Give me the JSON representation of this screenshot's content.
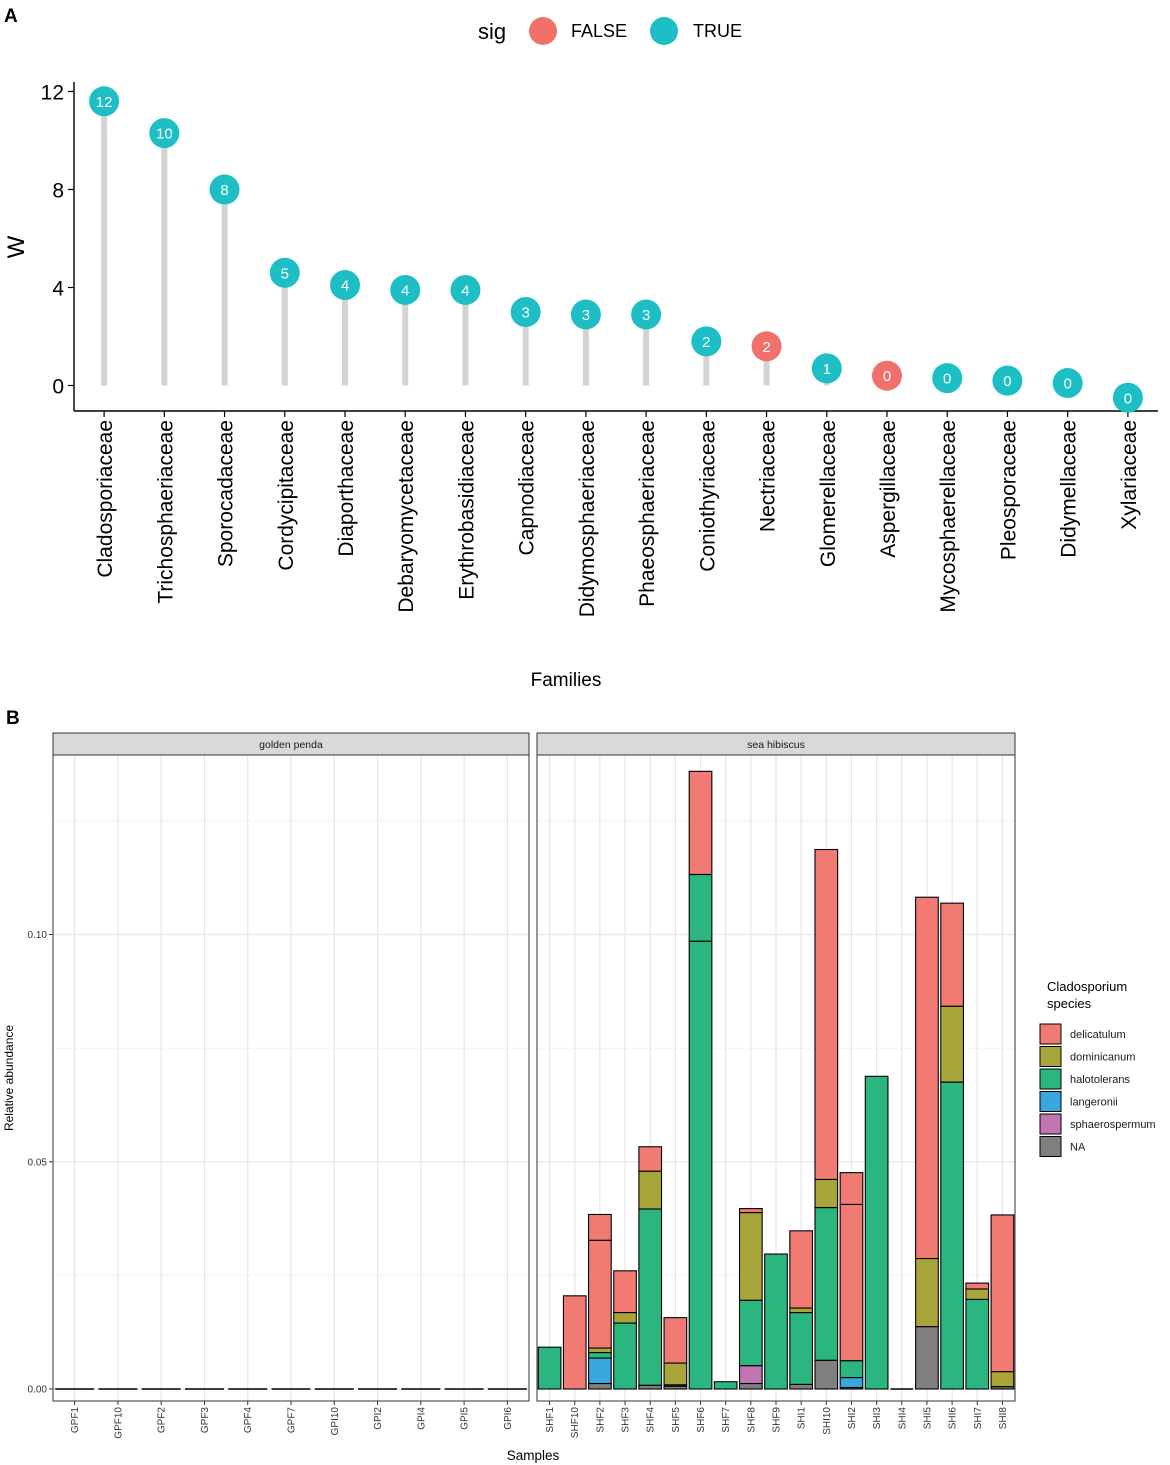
{
  "colors": {
    "sig_false": "#F0716C",
    "sig_true": "#1DBFC4",
    "stem": "#D3D3D3",
    "delicatulum": "#F17B73",
    "dominicanum": "#A8A63A",
    "halotolerans": "#2CB67F",
    "langeronii": "#3AA6DE",
    "sphaerospermum": "#C275B5",
    "NA": "#7F7F7F"
  },
  "panel_a": {
    "tag": "A",
    "legend": {
      "title": "sig",
      "false_label": "FALSE",
      "true_label": "TRUE"
    }
  },
  "panel_b": {
    "tag": "B",
    "legend": {
      "title_line1": "Cladosporium",
      "title_line2": "species"
    },
    "facets": [
      "golden penda",
      "sea hibiscus"
    ]
  },
  "chart_data": [
    {
      "type": "lollipop",
      "panel": "A",
      "xlabel": "Families",
      "ylabel": "W",
      "ylim": [
        -0.7,
        12.5
      ],
      "yticks": [
        0,
        4,
        8,
        12
      ],
      "categories": [
        "Cladosporiaceae",
        "Trichosphaeriaceae",
        "Sporocadaceae",
        "Cordycipitaceae",
        "Diaporthaceae",
        "Debaryomycetaceae",
        "Erythrobasidiaceae",
        "Capnodiaceae",
        "Didymosphaeriaceae",
        "Phaeosphaeriaceae",
        "Coniothyriaceae",
        "Nectriaceae",
        "Glomerellaceae",
        "Aspergillaceae",
        "Mycosphaerellaceae",
        "Pleosporaceae",
        "Didymellaceae",
        "Xylariaceae"
      ],
      "values": [
        11.6,
        10.3,
        8.0,
        4.6,
        4.1,
        3.9,
        3.9,
        3.0,
        2.9,
        2.9,
        1.8,
        1.6,
        0.7,
        0.4,
        0.3,
        0.2,
        0.1,
        -0.5
      ],
      "labels": [
        "12",
        "10",
        "8",
        "5",
        "4",
        "4",
        "4",
        "3",
        "3",
        "3",
        "2",
        "2",
        "1",
        "0",
        "0",
        "0",
        "0",
        "0"
      ],
      "sig": [
        true,
        true,
        true,
        true,
        true,
        true,
        true,
        true,
        true,
        true,
        true,
        false,
        true,
        false,
        true,
        true,
        true,
        true
      ]
    },
    {
      "type": "stacked-bar",
      "panel": "B",
      "xlabel": "Samples",
      "ylabel": "Relative abundance",
      "ylim": [
        0,
        0.137
      ],
      "yticks": [
        "0.00",
        "0.05",
        "0.10"
      ],
      "series_names": [
        "delicatulum",
        "dominicanum",
        "halotolerans",
        "langeronii",
        "sphaerospermum",
        "NA"
      ],
      "facets": [
        {
          "name": "golden penda",
          "categories": [
            "GPF1",
            "GPF10",
            "GPF2",
            "GPF3",
            "GPF4",
            "GPF7",
            "GPI10",
            "GPI2",
            "GPI4",
            "GPI5",
            "GPI6"
          ],
          "bars": [
            [],
            [],
            [],
            [],
            [],
            [],
            [],
            [],
            [],
            [],
            []
          ]
        },
        {
          "name": "sea hibiscus",
          "categories": [
            "SHF1",
            "SHF10",
            "SHF2",
            "SHF3",
            "SHF4",
            "SHF5",
            "SHF6",
            "SHF7",
            "SHF8",
            "SHF9",
            "SHI1",
            "SHI10",
            "SHI2",
            "SHI3",
            "SHI4",
            "SHI5",
            "SHI6",
            "SHI7",
            "SHI8"
          ],
          "bars": [
            [
              [
                "halotolerans",
                0.0092
              ]
            ],
            [
              [
                "delicatulum",
                0.0205
              ]
            ],
            [
              [
                "delicatulum",
                0.0057
              ],
              [
                "delicatulum",
                0.0237
              ],
              [
                "dominicanum",
                0.001
              ],
              [
                "halotolerans",
                0.0012
              ],
              [
                "langeronii",
                0.0056
              ],
              [
                "NA",
                0.0012
              ]
            ],
            [
              [
                "delicatulum",
                0.0092
              ],
              [
                "dominicanum",
                0.0023
              ],
              [
                "halotolerans",
                0.0145
              ]
            ],
            [
              [
                "delicatulum",
                0.0054
              ],
              [
                "dominicanum",
                0.0083
              ],
              [
                "halotolerans",
                0.0388
              ],
              [
                "NA",
                0.0008
              ]
            ],
            [
              [
                "delicatulum",
                0.01
              ],
              [
                "dominicanum",
                0.0048
              ],
              [
                "halotolerans",
                0.0003
              ],
              [
                "NA",
                0.0006
              ]
            ],
            [
              [
                "delicatulum",
                0.0227
              ],
              [
                "halotolerans",
                0.0147
              ],
              [
                "halotolerans",
                0.0985
              ]
            ],
            [
              [
                "halotolerans",
                0.0016
              ]
            ],
            [
              [
                "delicatulum",
                0.0009
              ],
              [
                "dominicanum",
                0.0193
              ],
              [
                "halotolerans",
                0.0144
              ],
              [
                "sphaerospermum",
                0.0039
              ],
              [
                "NA",
                0.0012
              ]
            ],
            [
              [
                "halotolerans",
                0.0297
              ]
            ],
            [
              [
                "delicatulum",
                0.017
              ],
              [
                "dominicanum",
                0.001
              ],
              [
                "halotolerans",
                0.0158
              ],
              [
                "NA",
                0.001
              ]
            ],
            [
              [
                "delicatulum",
                0.0726
              ],
              [
                "dominicanum",
                0.0062
              ],
              [
                "halotolerans",
                0.0336
              ],
              [
                "NA",
                0.0063
              ]
            ],
            [
              [
                "delicatulum",
                0.007
              ],
              [
                "delicatulum",
                0.0344
              ],
              [
                "halotolerans",
                0.0037
              ],
              [
                "langeronii",
                0.0022
              ],
              [
                "NA",
                0.0003
              ]
            ],
            [
              [
                "halotolerans",
                0.0688
              ]
            ],
            [],
            [
              [
                "delicatulum",
                0.0795
              ],
              [
                "dominicanum",
                0.015
              ],
              [
                "NA",
                0.0137
              ]
            ],
            [
              [
                "delicatulum",
                0.0227
              ],
              [
                "dominicanum",
                0.0167
              ],
              [
                "halotolerans",
                0.0675
              ]
            ],
            [
              [
                "delicatulum",
                0.0013
              ],
              [
                "dominicanum",
                0.0023
              ],
              [
                "halotolerans",
                0.0197
              ]
            ],
            [
              [
                "delicatulum",
                0.0345
              ],
              [
                "dominicanum",
                0.0033
              ],
              [
                "NA",
                0.0005
              ]
            ]
          ]
        }
      ]
    }
  ]
}
